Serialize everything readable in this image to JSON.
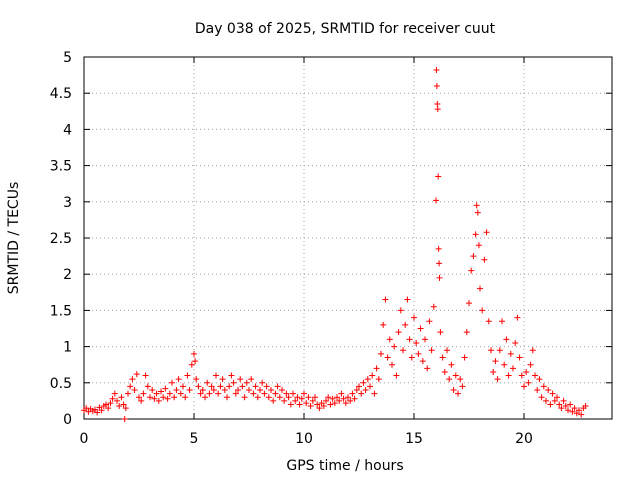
{
  "chart_data": {
    "type": "scatter",
    "title": "Day 038 of 2025, SRMTID for receiver cuut",
    "xlabel": "GPS time / hours",
    "ylabel": "SRMTID / TECUs",
    "xlim": [
      0,
      24
    ],
    "ylim": [
      0,
      5
    ],
    "xticks": [
      "0",
      "5",
      "10",
      "15",
      "20"
    ],
    "yticks": [
      "0",
      "0.5",
      "1",
      "1.5",
      "2",
      "2.5",
      "3",
      "3.5",
      "4",
      "4.5",
      "5"
    ],
    "grid": true,
    "marker": "+",
    "color": "#ff0000",
    "series": [
      {
        "name": "SRMTID",
        "points": [
          [
            0.0,
            0.12
          ],
          [
            0.1,
            0.15
          ],
          [
            0.2,
            0.1
          ],
          [
            0.3,
            0.14
          ],
          [
            0.4,
            0.11
          ],
          [
            0.5,
            0.13
          ],
          [
            0.6,
            0.09
          ],
          [
            0.7,
            0.16
          ],
          [
            0.8,
            0.12
          ],
          [
            0.9,
            0.18
          ],
          [
            1.0,
            0.2
          ],
          [
            1.1,
            0.15
          ],
          [
            1.2,
            0.22
          ],
          [
            1.3,
            0.28
          ],
          [
            1.4,
            0.35
          ],
          [
            1.5,
            0.25
          ],
          [
            1.6,
            0.18
          ],
          [
            1.7,
            0.3
          ],
          [
            1.8,
            0.2
          ],
          [
            1.85,
            0.0
          ],
          [
            1.9,
            0.15
          ],
          [
            2.0,
            0.35
          ],
          [
            2.1,
            0.45
          ],
          [
            2.2,
            0.55
          ],
          [
            2.3,
            0.4
          ],
          [
            2.4,
            0.62
          ],
          [
            2.5,
            0.3
          ],
          [
            2.6,
            0.25
          ],
          [
            2.7,
            0.35
          ],
          [
            2.8,
            0.6
          ],
          [
            2.9,
            0.45
          ],
          [
            3.0,
            0.3
          ],
          [
            3.1,
            0.4
          ],
          [
            3.2,
            0.28
          ],
          [
            3.3,
            0.35
          ],
          [
            3.4,
            0.25
          ],
          [
            3.5,
            0.38
          ],
          [
            3.6,
            0.3
          ],
          [
            3.7,
            0.42
          ],
          [
            3.8,
            0.28
          ],
          [
            3.9,
            0.35
          ],
          [
            4.0,
            0.5
          ],
          [
            4.1,
            0.3
          ],
          [
            4.2,
            0.4
          ],
          [
            4.3,
            0.55
          ],
          [
            4.4,
            0.35
          ],
          [
            4.5,
            0.45
          ],
          [
            4.6,
            0.3
          ],
          [
            4.7,
            0.6
          ],
          [
            4.8,
            0.4
          ],
          [
            4.9,
            0.75
          ],
          [
            5.0,
            0.9
          ],
          [
            5.05,
            0.8
          ],
          [
            5.1,
            0.55
          ],
          [
            5.2,
            0.45
          ],
          [
            5.3,
            0.35
          ],
          [
            5.4,
            0.4
          ],
          [
            5.5,
            0.3
          ],
          [
            5.6,
            0.5
          ],
          [
            5.7,
            0.35
          ],
          [
            5.8,
            0.45
          ],
          [
            5.9,
            0.4
          ],
          [
            6.0,
            0.6
          ],
          [
            6.1,
            0.35
          ],
          [
            6.2,
            0.45
          ],
          [
            6.3,
            0.55
          ],
          [
            6.4,
            0.4
          ],
          [
            6.5,
            0.3
          ],
          [
            6.6,
            0.45
          ],
          [
            6.7,
            0.6
          ],
          [
            6.8,
            0.5
          ],
          [
            6.9,
            0.35
          ],
          [
            7.0,
            0.4
          ],
          [
            7.1,
            0.55
          ],
          [
            7.2,
            0.45
          ],
          [
            7.3,
            0.3
          ],
          [
            7.4,
            0.5
          ],
          [
            7.5,
            0.4
          ],
          [
            7.6,
            0.55
          ],
          [
            7.7,
            0.35
          ],
          [
            7.8,
            0.45
          ],
          [
            7.9,
            0.3
          ],
          [
            8.0,
            0.4
          ],
          [
            8.1,
            0.5
          ],
          [
            8.2,
            0.35
          ],
          [
            8.3,
            0.45
          ],
          [
            8.4,
            0.3
          ],
          [
            8.5,
            0.4
          ],
          [
            8.6,
            0.25
          ],
          [
            8.7,
            0.35
          ],
          [
            8.8,
            0.45
          ],
          [
            8.9,
            0.3
          ],
          [
            9.0,
            0.4
          ],
          [
            9.1,
            0.25
          ],
          [
            9.2,
            0.35
          ],
          [
            9.3,
            0.3
          ],
          [
            9.4,
            0.2
          ],
          [
            9.5,
            0.35
          ],
          [
            9.6,
            0.25
          ],
          [
            9.7,
            0.3
          ],
          [
            9.8,
            0.2
          ],
          [
            9.9,
            0.28
          ],
          [
            10.0,
            0.35
          ],
          [
            10.1,
            0.22
          ],
          [
            10.2,
            0.3
          ],
          [
            10.3,
            0.18
          ],
          [
            10.4,
            0.25
          ],
          [
            10.5,
            0.3
          ],
          [
            10.6,
            0.2
          ],
          [
            10.7,
            0.15
          ],
          [
            10.8,
            0.22
          ],
          [
            10.9,
            0.18
          ],
          [
            11.0,
            0.25
          ],
          [
            11.1,
            0.3
          ],
          [
            11.2,
            0.2
          ],
          [
            11.3,
            0.28
          ],
          [
            11.4,
            0.22
          ],
          [
            11.5,
            0.3
          ],
          [
            11.6,
            0.25
          ],
          [
            11.7,
            0.35
          ],
          [
            11.8,
            0.28
          ],
          [
            11.9,
            0.22
          ],
          [
            12.0,
            0.3
          ],
          [
            12.1,
            0.25
          ],
          [
            12.2,
            0.35
          ],
          [
            12.3,
            0.28
          ],
          [
            12.4,
            0.4
          ],
          [
            12.5,
            0.45
          ],
          [
            12.6,
            0.35
          ],
          [
            12.7,
            0.5
          ],
          [
            12.8,
            0.4
          ],
          [
            12.9,
            0.55
          ],
          [
            13.0,
            0.45
          ],
          [
            13.1,
            0.6
          ],
          [
            13.2,
            0.35
          ],
          [
            13.3,
            0.7
          ],
          [
            13.4,
            0.55
          ],
          [
            13.5,
            0.9
          ],
          [
            13.6,
            1.3
          ],
          [
            13.7,
            1.65
          ],
          [
            13.8,
            0.85
          ],
          [
            13.9,
            1.1
          ],
          [
            14.0,
            0.75
          ],
          [
            14.1,
            1.0
          ],
          [
            14.2,
            0.6
          ],
          [
            14.3,
            1.2
          ],
          [
            14.4,
            1.5
          ],
          [
            14.5,
            0.95
          ],
          [
            14.6,
            1.3
          ],
          [
            14.7,
            1.65
          ],
          [
            14.8,
            1.1
          ],
          [
            14.9,
            0.85
          ],
          [
            15.0,
            1.4
          ],
          [
            15.1,
            1.05
          ],
          [
            15.2,
            0.9
          ],
          [
            15.3,
            1.25
          ],
          [
            15.4,
            0.8
          ],
          [
            15.5,
            1.1
          ],
          [
            15.6,
            0.7
          ],
          [
            15.7,
            1.35
          ],
          [
            15.8,
            0.95
          ],
          [
            15.9,
            1.55
          ],
          [
            16.0,
            3.02
          ],
          [
            16.02,
            4.82
          ],
          [
            16.04,
            4.6
          ],
          [
            16.06,
            4.35
          ],
          [
            16.08,
            4.28
          ],
          [
            16.1,
            3.35
          ],
          [
            16.12,
            2.35
          ],
          [
            16.14,
            2.15
          ],
          [
            16.16,
            1.95
          ],
          [
            16.2,
            1.2
          ],
          [
            16.3,
            0.85
          ],
          [
            16.4,
            0.65
          ],
          [
            16.5,
            0.95
          ],
          [
            16.6,
            0.55
          ],
          [
            16.7,
            0.75
          ],
          [
            16.8,
            0.4
          ],
          [
            16.9,
            0.6
          ],
          [
            17.0,
            0.35
          ],
          [
            17.1,
            0.55
          ],
          [
            17.2,
            0.45
          ],
          [
            17.3,
            0.85
          ],
          [
            17.4,
            1.2
          ],
          [
            17.5,
            1.6
          ],
          [
            17.6,
            2.05
          ],
          [
            17.7,
            2.25
          ],
          [
            17.8,
            2.55
          ],
          [
            17.85,
            2.95
          ],
          [
            17.9,
            2.85
          ],
          [
            17.95,
            2.4
          ],
          [
            18.0,
            1.8
          ],
          [
            18.1,
            1.5
          ],
          [
            18.2,
            2.2
          ],
          [
            18.3,
            2.58
          ],
          [
            18.4,
            1.35
          ],
          [
            18.5,
            0.95
          ],
          [
            18.6,
            0.65
          ],
          [
            18.7,
            0.8
          ],
          [
            18.8,
            0.55
          ],
          [
            18.9,
            0.95
          ],
          [
            19.0,
            1.35
          ],
          [
            19.1,
            0.75
          ],
          [
            19.2,
            1.1
          ],
          [
            19.3,
            0.6
          ],
          [
            19.4,
            0.9
          ],
          [
            19.5,
            0.7
          ],
          [
            19.6,
            1.05
          ],
          [
            19.7,
            1.4
          ],
          [
            19.8,
            0.85
          ],
          [
            19.9,
            0.6
          ],
          [
            20.0,
            0.45
          ],
          [
            20.1,
            0.65
          ],
          [
            20.2,
            0.5
          ],
          [
            20.3,
            0.75
          ],
          [
            20.4,
            0.95
          ],
          [
            20.5,
            0.6
          ],
          [
            20.6,
            0.4
          ],
          [
            20.7,
            0.55
          ],
          [
            20.8,
            0.3
          ],
          [
            20.9,
            0.45
          ],
          [
            21.0,
            0.25
          ],
          [
            21.1,
            0.4
          ],
          [
            21.2,
            0.2
          ],
          [
            21.3,
            0.35
          ],
          [
            21.4,
            0.25
          ],
          [
            21.5,
            0.3
          ],
          [
            21.6,
            0.2
          ],
          [
            21.7,
            0.15
          ],
          [
            21.8,
            0.25
          ],
          [
            21.9,
            0.18
          ],
          [
            22.0,
            0.12
          ],
          [
            22.1,
            0.2
          ],
          [
            22.2,
            0.1
          ],
          [
            22.3,
            0.15
          ],
          [
            22.4,
            0.08
          ],
          [
            22.5,
            0.12
          ],
          [
            22.6,
            0.06
          ],
          [
            22.7,
            0.15
          ],
          [
            22.8,
            0.18
          ]
        ]
      }
    ]
  }
}
